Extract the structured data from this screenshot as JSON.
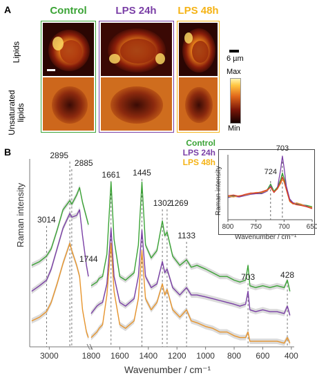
{
  "panel_a": {
    "label": "A",
    "columns": [
      {
        "title": "Control",
        "color": "#3aa335"
      },
      {
        "title": "LPS 24h",
        "color": "#7a3fa6"
      },
      {
        "title": "LPS 48h",
        "color": "#f5b316"
      }
    ],
    "rows": [
      "Lipids",
      "Unsaturated lipids"
    ],
    "scalebar_label": "6 µm",
    "colorbar": {
      "max_label": "Max",
      "min_label": "Min"
    }
  },
  "panel_b": {
    "label": "B",
    "legend": [
      {
        "name": "Control",
        "color": "#3aa335"
      },
      {
        "name": "LPS 24h",
        "color": "#7a3fa6"
      },
      {
        "name": "LPS 48h",
        "color": "#f5b316"
      }
    ]
  },
  "chart_data": [
    {
      "type": "line",
      "xlabel": "Wavenumber / cm⁻¹",
      "ylabel": "Raman intensity",
      "x_reversed": true,
      "x_break": "between 2800 and 1800 cm⁻¹",
      "xticks": [
        "3000",
        "1800",
        "1600",
        "1400",
        "1200",
        "1000",
        "800",
        "600",
        "400"
      ],
      "peak_labels": [
        "3014",
        "2895",
        "2885",
        "1744",
        "1661",
        "1445",
        "1302",
        "1269",
        "1133",
        "703",
        "428"
      ],
      "series": [
        {
          "name": "Control",
          "color": "#3aa335",
          "points": [
            [
              3090,
              0.44
            ],
            [
              3050,
              0.46
            ],
            [
              3014,
              0.49
            ],
            [
              2990,
              0.53
            ],
            [
              2960,
              0.63
            ],
            [
              2930,
              0.74
            ],
            [
              2895,
              0.79
            ],
            [
              2885,
              0.77
            ],
            [
              2860,
              0.82
            ],
            [
              2845,
              0.86
            ],
            [
              2830,
              0.78
            ],
            [
              2810,
              0.7
            ],
            [
              2800,
              0.66
            ],
            [
              1800,
              0.33
            ],
            [
              1760,
              0.35
            ],
            [
              1744,
              0.37
            ],
            [
              1720,
              0.38
            ],
            [
              1690,
              0.5
            ],
            [
              1661,
              0.89
            ],
            [
              1640,
              0.58
            ],
            [
              1600,
              0.38
            ],
            [
              1560,
              0.36
            ],
            [
              1500,
              0.4
            ],
            [
              1470,
              0.55
            ],
            [
              1445,
              0.89
            ],
            [
              1420,
              0.55
            ],
            [
              1380,
              0.48
            ],
            [
              1340,
              0.52
            ],
            [
              1302,
              0.68
            ],
            [
              1285,
              0.6
            ],
            [
              1269,
              0.62
            ],
            [
              1230,
              0.49
            ],
            [
              1180,
              0.44
            ],
            [
              1133,
              0.47
            ],
            [
              1100,
              0.43
            ],
            [
              1060,
              0.44
            ],
            [
              1000,
              0.42
            ],
            [
              950,
              0.4
            ],
            [
              900,
              0.38
            ],
            [
              850,
              0.38
            ],
            [
              800,
              0.36
            ],
            [
              760,
              0.35
            ],
            [
              720,
              0.36
            ],
            [
              703,
              0.44
            ],
            [
              690,
              0.33
            ],
            [
              650,
              0.32
            ],
            [
              600,
              0.33
            ],
            [
              550,
              0.32
            ],
            [
              500,
              0.33
            ],
            [
              450,
              0.32
            ],
            [
              428,
              0.36
            ],
            [
              410,
              0.3
            ]
          ]
        },
        {
          "name": "LPS 24h",
          "color": "#7a3fa6",
          "points": [
            [
              3090,
              0.3
            ],
            [
              3050,
              0.33
            ],
            [
              3014,
              0.36
            ],
            [
              2990,
              0.42
            ],
            [
              2960,
              0.53
            ],
            [
              2930,
              0.64
            ],
            [
              2895,
              0.72
            ],
            [
              2885,
              0.7
            ],
            [
              2860,
              0.71
            ],
            [
              2845,
              0.74
            ],
            [
              2830,
              0.6
            ],
            [
              2810,
              0.44
            ],
            [
              2800,
              0.38
            ],
            [
              1800,
              0.18
            ],
            [
              1760,
              0.22
            ],
            [
              1744,
              0.23
            ],
            [
              1720,
              0.24
            ],
            [
              1690,
              0.34
            ],
            [
              1661,
              0.64
            ],
            [
              1640,
              0.38
            ],
            [
              1600,
              0.24
            ],
            [
              1560,
              0.22
            ],
            [
              1500,
              0.26
            ],
            [
              1470,
              0.38
            ],
            [
              1445,
              0.63
            ],
            [
              1420,
              0.38
            ],
            [
              1380,
              0.32
            ],
            [
              1340,
              0.34
            ],
            [
              1302,
              0.46
            ],
            [
              1285,
              0.4
            ],
            [
              1269,
              0.42
            ],
            [
              1230,
              0.32
            ],
            [
              1180,
              0.28
            ],
            [
              1133,
              0.32
            ],
            [
              1100,
              0.28
            ],
            [
              1060,
              0.28
            ],
            [
              1000,
              0.27
            ],
            [
              950,
              0.26
            ],
            [
              900,
              0.25
            ],
            [
              850,
              0.24
            ],
            [
              800,
              0.23
            ],
            [
              760,
              0.22
            ],
            [
              720,
              0.23
            ],
            [
              703,
              0.3
            ],
            [
              690,
              0.2
            ],
            [
              650,
              0.19
            ],
            [
              600,
              0.2
            ],
            [
              550,
              0.19
            ],
            [
              500,
              0.19
            ],
            [
              450,
              0.18
            ],
            [
              428,
              0.22
            ],
            [
              410,
              0.17
            ]
          ]
        },
        {
          "name": "LPS 48h",
          "color": "#e8952c",
          "points": [
            [
              3090,
              0.14
            ],
            [
              3050,
              0.16
            ],
            [
              3014,
              0.19
            ],
            [
              2990,
              0.24
            ],
            [
              2960,
              0.34
            ],
            [
              2930,
              0.45
            ],
            [
              2895,
              0.56
            ],
            [
              2885,
              0.52
            ],
            [
              2860,
              0.44
            ],
            [
              2845,
              0.38
            ],
            [
              2830,
              0.2
            ],
            [
              2810,
              0.08
            ],
            [
              2800,
              0.05
            ],
            [
              1800,
              0.05
            ],
            [
              1760,
              0.08
            ],
            [
              1744,
              0.1
            ],
            [
              1720,
              0.12
            ],
            [
              1690,
              0.28
            ],
            [
              1661,
              0.56
            ],
            [
              1640,
              0.3
            ],
            [
              1600,
              0.12
            ],
            [
              1560,
              0.1
            ],
            [
              1500,
              0.14
            ],
            [
              1470,
              0.26
            ],
            [
              1445,
              0.52
            ],
            [
              1420,
              0.26
            ],
            [
              1380,
              0.2
            ],
            [
              1340,
              0.24
            ],
            [
              1302,
              0.34
            ],
            [
              1285,
              0.28
            ],
            [
              1269,
              0.31
            ],
            [
              1230,
              0.2
            ],
            [
              1180,
              0.16
            ],
            [
              1133,
              0.2
            ],
            [
              1100,
              0.14
            ],
            [
              1060,
              0.13
            ],
            [
              1000,
              0.11
            ],
            [
              950,
              0.1
            ],
            [
              900,
              0.08
            ],
            [
              850,
              0.08
            ],
            [
              800,
              0.06
            ],
            [
              760,
              0.05
            ],
            [
              720,
              0.05
            ],
            [
              703,
              0.08
            ],
            [
              690,
              0.03
            ],
            [
              650,
              0.03
            ],
            [
              600,
              0.03
            ],
            [
              550,
              0.03
            ],
            [
              500,
              0.03
            ],
            [
              450,
              0.02
            ],
            [
              428,
              0.05
            ],
            [
              410,
              0.02
            ]
          ]
        }
      ]
    },
    {
      "type": "line",
      "xlabel": "Wavenumber / cm⁻¹",
      "ylabel": "Raman intensity",
      "x_reversed": true,
      "xlim": [
        800,
        650
      ],
      "xticks": [
        "800",
        "750",
        "700",
        "650"
      ],
      "peak_labels": [
        "724",
        "703"
      ],
      "series": [
        {
          "name": "Control",
          "color": "#3aa335",
          "points": [
            [
              800,
              0.35
            ],
            [
              790,
              0.37
            ],
            [
              780,
              0.36
            ],
            [
              770,
              0.38
            ],
            [
              760,
              0.4
            ],
            [
              750,
              0.4
            ],
            [
              740,
              0.41
            ],
            [
              730,
              0.46
            ],
            [
              724,
              0.55
            ],
            [
              718,
              0.44
            ],
            [
              712,
              0.5
            ],
            [
              706,
              0.62
            ],
            [
              703,
              0.72
            ],
            [
              700,
              0.64
            ],
            [
              696,
              0.5
            ],
            [
              690,
              0.3
            ],
            [
              684,
              0.26
            ],
            [
              678,
              0.24
            ],
            [
              670,
              0.23
            ],
            [
              660,
              0.22
            ],
            [
              650,
              0.2
            ]
          ]
        },
        {
          "name": "LPS 24h",
          "color": "#7a3fa6",
          "points": [
            [
              800,
              0.34
            ],
            [
              790,
              0.36
            ],
            [
              780,
              0.35
            ],
            [
              770,
              0.37
            ],
            [
              760,
              0.39
            ],
            [
              750,
              0.4
            ],
            [
              740,
              0.4
            ],
            [
              730,
              0.44
            ],
            [
              724,
              0.52
            ],
            [
              718,
              0.42
            ],
            [
              712,
              0.48
            ],
            [
              706,
              0.78
            ],
            [
              703,
              0.98
            ],
            [
              700,
              0.8
            ],
            [
              696,
              0.52
            ],
            [
              690,
              0.32
            ],
            [
              684,
              0.26
            ],
            [
              678,
              0.25
            ],
            [
              670,
              0.24
            ],
            [
              660,
              0.21
            ],
            [
              650,
              0.18
            ]
          ]
        },
        {
          "name": "LPS 48h",
          "color": "#e8952c",
          "points": [
            [
              800,
              0.36
            ],
            [
              790,
              0.35
            ],
            [
              780,
              0.37
            ],
            [
              770,
              0.38
            ],
            [
              760,
              0.4
            ],
            [
              750,
              0.42
            ],
            [
              740,
              0.42
            ],
            [
              730,
              0.45
            ],
            [
              724,
              0.5
            ],
            [
              718,
              0.43
            ],
            [
              712,
              0.47
            ],
            [
              706,
              0.56
            ],
            [
              703,
              0.62
            ],
            [
              700,
              0.58
            ],
            [
              696,
              0.46
            ],
            [
              690,
              0.28
            ],
            [
              684,
              0.24
            ],
            [
              678,
              0.26
            ],
            [
              670,
              0.24
            ],
            [
              660,
              0.2
            ],
            [
              650,
              0.19
            ]
          ]
        },
        {
          "name": "",
          "color": "#d93a2a",
          "points": [
            [
              800,
              0.37
            ],
            [
              790,
              0.38
            ],
            [
              780,
              0.36
            ],
            [
              770,
              0.39
            ],
            [
              760,
              0.41
            ],
            [
              750,
              0.41
            ],
            [
              740,
              0.43
            ],
            [
              730,
              0.46
            ],
            [
              724,
              0.5
            ],
            [
              718,
              0.42
            ],
            [
              712,
              0.48
            ],
            [
              706,
              0.58
            ],
            [
              703,
              0.66
            ],
            [
              700,
              0.6
            ],
            [
              696,
              0.47
            ],
            [
              690,
              0.29
            ],
            [
              684,
              0.25
            ],
            [
              678,
              0.23
            ],
            [
              670,
              0.22
            ],
            [
              660,
              0.2
            ],
            [
              650,
              0.17
            ]
          ]
        }
      ]
    }
  ]
}
